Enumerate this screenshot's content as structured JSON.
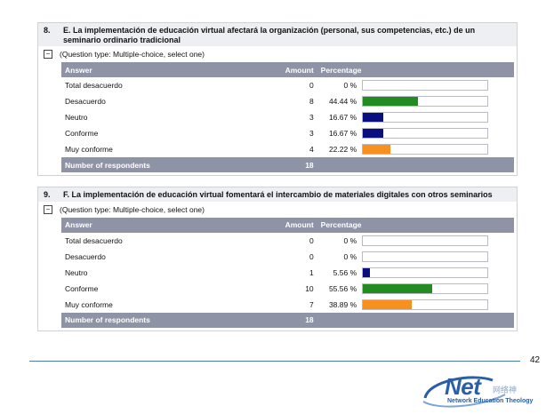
{
  "colors": {
    "header_bg": "#8e93a6",
    "green": "#228b22",
    "navy": "#0a0f80",
    "orange": "#f7901e",
    "divider": "#4d7bb3"
  },
  "questions": [
    {
      "number": "8.",
      "title": "E. La implementación de educación virtual afectará la organización (personal, sus competencias, etc.) de un seminario ordinario tradicional",
      "type_label": "(Question type: Multiple-choice, select one)",
      "headers": {
        "answer": "Answer",
        "amount": "Amount",
        "percentage": "Percentage"
      },
      "rows": [
        {
          "answer": "Total desacuerdo",
          "amount": "0",
          "percentage": "0 %",
          "fraction": 0.0,
          "color": "#228b22"
        },
        {
          "answer": "Desacuerdo",
          "amount": "8",
          "percentage": "44.44 %",
          "fraction": 0.4444,
          "color": "#228b22"
        },
        {
          "answer": "Neutro",
          "amount": "3",
          "percentage": "16.67 %",
          "fraction": 0.1667,
          "color": "#0a0f80"
        },
        {
          "answer": "Conforme",
          "amount": "3",
          "percentage": "16.67 %",
          "fraction": 0.1667,
          "color": "#0a0f80"
        },
        {
          "answer": "Muy conforme",
          "amount": "4",
          "percentage": "22.22 %",
          "fraction": 0.2222,
          "color": "#f7901e"
        }
      ],
      "respondents_label": "Number of respondents",
      "respondents_count": "18"
    },
    {
      "number": "9.",
      "title": "F. La implementación de educación virtual fomentará  el intercambio de materiales digitales con otros seminarios",
      "type_label": "(Question type: Multiple-choice, select one)",
      "headers": {
        "answer": "Answer",
        "amount": "Amount",
        "percentage": "Percentage"
      },
      "rows": [
        {
          "answer": "Total desacuerdo",
          "amount": "0",
          "percentage": "0 %",
          "fraction": 0.0,
          "color": "#228b22"
        },
        {
          "answer": "Desacuerdo",
          "amount": "0",
          "percentage": "0 %",
          "fraction": 0.0,
          "color": "#228b22"
        },
        {
          "answer": "Neutro",
          "amount": "1",
          "percentage": "5.56 %",
          "fraction": 0.0556,
          "color": "#0a0f80"
        },
        {
          "answer": "Conforme",
          "amount": "10",
          "percentage": "55.56 %",
          "fraction": 0.5556,
          "color": "#228b22"
        },
        {
          "answer": "Muy conforme",
          "amount": "7",
          "percentage": "38.89 %",
          "fraction": 0.3889,
          "color": "#f7901e"
        }
      ],
      "respondents_label": "Number of respondents",
      "respondents_count": "18"
    }
  ],
  "footer": {
    "page_number": "42",
    "logo_word": "Net",
    "logo_chars": "网络神",
    "logo_subtitle": "Network Education Theology"
  }
}
